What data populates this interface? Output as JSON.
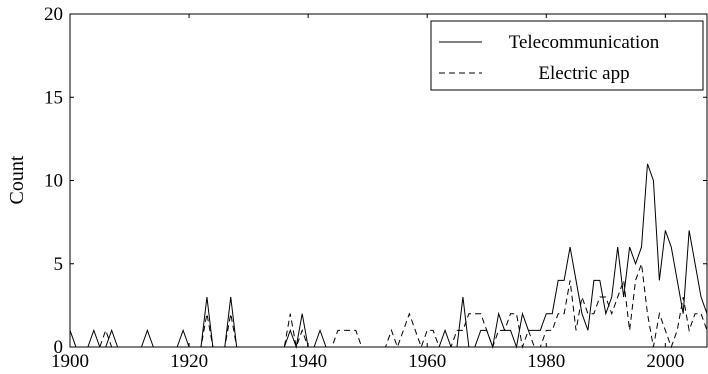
{
  "chart_data": {
    "type": "line",
    "ylabel": "Count",
    "xlabel": "",
    "xlim": [
      1900,
      2007
    ],
    "ylim": [
      0,
      20
    ],
    "x_ticks": [
      1900,
      1920,
      1940,
      1960,
      1980,
      2000
    ],
    "y_ticks": [
      0,
      5,
      10,
      15,
      20
    ],
    "legend_position": "top-right",
    "grid": false,
    "series": [
      {
        "name": "Telecommunication",
        "style": "solid",
        "points": [
          [
            1900,
            1
          ],
          [
            1901,
            0
          ],
          [
            1902,
            0
          ],
          [
            1903,
            0
          ],
          [
            1904,
            1
          ],
          [
            1905,
            0
          ],
          [
            1906,
            0
          ],
          [
            1907,
            1
          ],
          [
            1908,
            0
          ],
          [
            1909,
            0
          ],
          [
            1910,
            0
          ],
          [
            1911,
            0
          ],
          [
            1912,
            0
          ],
          [
            1913,
            1
          ],
          [
            1914,
            0
          ],
          [
            1915,
            0
          ],
          [
            1916,
            0
          ],
          [
            1917,
            0
          ],
          [
            1918,
            0
          ],
          [
            1919,
            1
          ],
          [
            1920,
            0
          ],
          [
            1921,
            0
          ],
          [
            1922,
            0
          ],
          [
            1923,
            3
          ],
          [
            1924,
            0
          ],
          [
            1925,
            0
          ],
          [
            1926,
            0
          ],
          [
            1927,
            3
          ],
          [
            1928,
            0
          ],
          [
            1929,
            0
          ],
          [
            1930,
            0
          ],
          [
            1931,
            0
          ],
          [
            1932,
            0
          ],
          [
            1933,
            0
          ],
          [
            1934,
            0
          ],
          [
            1935,
            0
          ],
          [
            1936,
            0
          ],
          [
            1937,
            1
          ],
          [
            1938,
            0
          ],
          [
            1939,
            2
          ],
          [
            1940,
            0
          ],
          [
            1941,
            0
          ],
          [
            1942,
            1
          ],
          [
            1943,
            0
          ],
          [
            1944,
            0
          ],
          [
            1945,
            0
          ],
          [
            1946,
            0
          ],
          [
            1947,
            0
          ],
          [
            1948,
            0
          ],
          [
            1949,
            0
          ],
          [
            1950,
            0
          ],
          [
            1951,
            0
          ],
          [
            1952,
            0
          ],
          [
            1953,
            0
          ],
          [
            1954,
            0
          ],
          [
            1955,
            0
          ],
          [
            1956,
            0
          ],
          [
            1957,
            0
          ],
          [
            1958,
            0
          ],
          [
            1959,
            0
          ],
          [
            1960,
            0
          ],
          [
            1961,
            0
          ],
          [
            1962,
            0
          ],
          [
            1963,
            1
          ],
          [
            1964,
            0
          ],
          [
            1965,
            0
          ],
          [
            1966,
            3
          ],
          [
            1967,
            0
          ],
          [
            1968,
            0
          ],
          [
            1969,
            1
          ],
          [
            1970,
            1
          ],
          [
            1971,
            0
          ],
          [
            1972,
            2
          ],
          [
            1973,
            1
          ],
          [
            1974,
            1
          ],
          [
            1975,
            0
          ],
          [
            1976,
            2
          ],
          [
            1977,
            1
          ],
          [
            1978,
            1
          ],
          [
            1979,
            1
          ],
          [
            1980,
            2
          ],
          [
            1981,
            2
          ],
          [
            1982,
            4
          ],
          [
            1983,
            4
          ],
          [
            1984,
            6
          ],
          [
            1985,
            4
          ],
          [
            1986,
            2
          ],
          [
            1987,
            1
          ],
          [
            1988,
            4
          ],
          [
            1989,
            4
          ],
          [
            1990,
            2
          ],
          [
            1991,
            3
          ],
          [
            1992,
            6
          ],
          [
            1993,
            3
          ],
          [
            1994,
            6
          ],
          [
            1995,
            5
          ],
          [
            1996,
            6
          ],
          [
            1997,
            11
          ],
          [
            1998,
            10
          ],
          [
            1999,
            4
          ],
          [
            2000,
            7
          ],
          [
            2001,
            6
          ],
          [
            2002,
            4
          ],
          [
            2003,
            2
          ],
          [
            2004,
            7
          ],
          [
            2005,
            5
          ],
          [
            2006,
            3
          ],
          [
            2007,
            2
          ]
        ]
      },
      {
        "name": "Electric app",
        "style": "dashed",
        "points": [
          [
            1900,
            0
          ],
          [
            1901,
            0
          ],
          [
            1902,
            0
          ],
          [
            1903,
            0
          ],
          [
            1904,
            0
          ],
          [
            1905,
            0
          ],
          [
            1906,
            1
          ],
          [
            1907,
            0
          ],
          [
            1908,
            0
          ],
          [
            1909,
            0
          ],
          [
            1910,
            0
          ],
          [
            1911,
            0
          ],
          [
            1912,
            0
          ],
          [
            1913,
            0
          ],
          [
            1914,
            0
          ],
          [
            1915,
            0
          ],
          [
            1916,
            0
          ],
          [
            1917,
            0
          ],
          [
            1918,
            0
          ],
          [
            1919,
            0
          ],
          [
            1920,
            0
          ],
          [
            1921,
            0
          ],
          [
            1922,
            0
          ],
          [
            1923,
            2
          ],
          [
            1924,
            0
          ],
          [
            1925,
            0
          ],
          [
            1926,
            0
          ],
          [
            1927,
            2
          ],
          [
            1928,
            0
          ],
          [
            1929,
            0
          ],
          [
            1930,
            0
          ],
          [
            1931,
            0
          ],
          [
            1932,
            0
          ],
          [
            1933,
            0
          ],
          [
            1934,
            0
          ],
          [
            1935,
            0
          ],
          [
            1936,
            0
          ],
          [
            1937,
            2
          ],
          [
            1938,
            0
          ],
          [
            1939,
            1
          ],
          [
            1940,
            0
          ],
          [
            1941,
            0
          ],
          [
            1942,
            0
          ],
          [
            1943,
            0
          ],
          [
            1944,
            0
          ],
          [
            1945,
            1
          ],
          [
            1946,
            1
          ],
          [
            1947,
            1
          ],
          [
            1948,
            1
          ],
          [
            1949,
            0
          ],
          [
            1950,
            0
          ],
          [
            1951,
            0
          ],
          [
            1952,
            0
          ],
          [
            1953,
            0
          ],
          [
            1954,
            1
          ],
          [
            1955,
            0
          ],
          [
            1956,
            1
          ],
          [
            1957,
            2
          ],
          [
            1958,
            1
          ],
          [
            1959,
            0
          ],
          [
            1960,
            1
          ],
          [
            1961,
            1
          ],
          [
            1962,
            0
          ],
          [
            1963,
            0
          ],
          [
            1964,
            0
          ],
          [
            1965,
            1
          ],
          [
            1966,
            1
          ],
          [
            1967,
            2
          ],
          [
            1968,
            2
          ],
          [
            1969,
            2
          ],
          [
            1970,
            1
          ],
          [
            1971,
            0
          ],
          [
            1972,
            1
          ],
          [
            1973,
            1
          ],
          [
            1974,
            2
          ],
          [
            1975,
            2
          ],
          [
            1976,
            0
          ],
          [
            1977,
            1
          ],
          [
            1978,
            0
          ],
          [
            1979,
            0
          ],
          [
            1980,
            1
          ],
          [
            1981,
            1
          ],
          [
            1982,
            2
          ],
          [
            1983,
            2
          ],
          [
            1984,
            4
          ],
          [
            1985,
            1
          ],
          [
            1986,
            3
          ],
          [
            1987,
            2
          ],
          [
            1988,
            2
          ],
          [
            1989,
            3
          ],
          [
            1990,
            3
          ],
          [
            1991,
            2
          ],
          [
            1992,
            3
          ],
          [
            1993,
            4
          ],
          [
            1994,
            1
          ],
          [
            1995,
            4
          ],
          [
            1996,
            5
          ],
          [
            1997,
            2
          ],
          [
            1998,
            0
          ],
          [
            1999,
            2
          ],
          [
            2000,
            1
          ],
          [
            2001,
            0
          ],
          [
            2002,
            1
          ],
          [
            2003,
            3
          ],
          [
            2004,
            1
          ],
          [
            2005,
            2
          ],
          [
            2006,
            2
          ],
          [
            2007,
            1
          ]
        ]
      }
    ]
  }
}
